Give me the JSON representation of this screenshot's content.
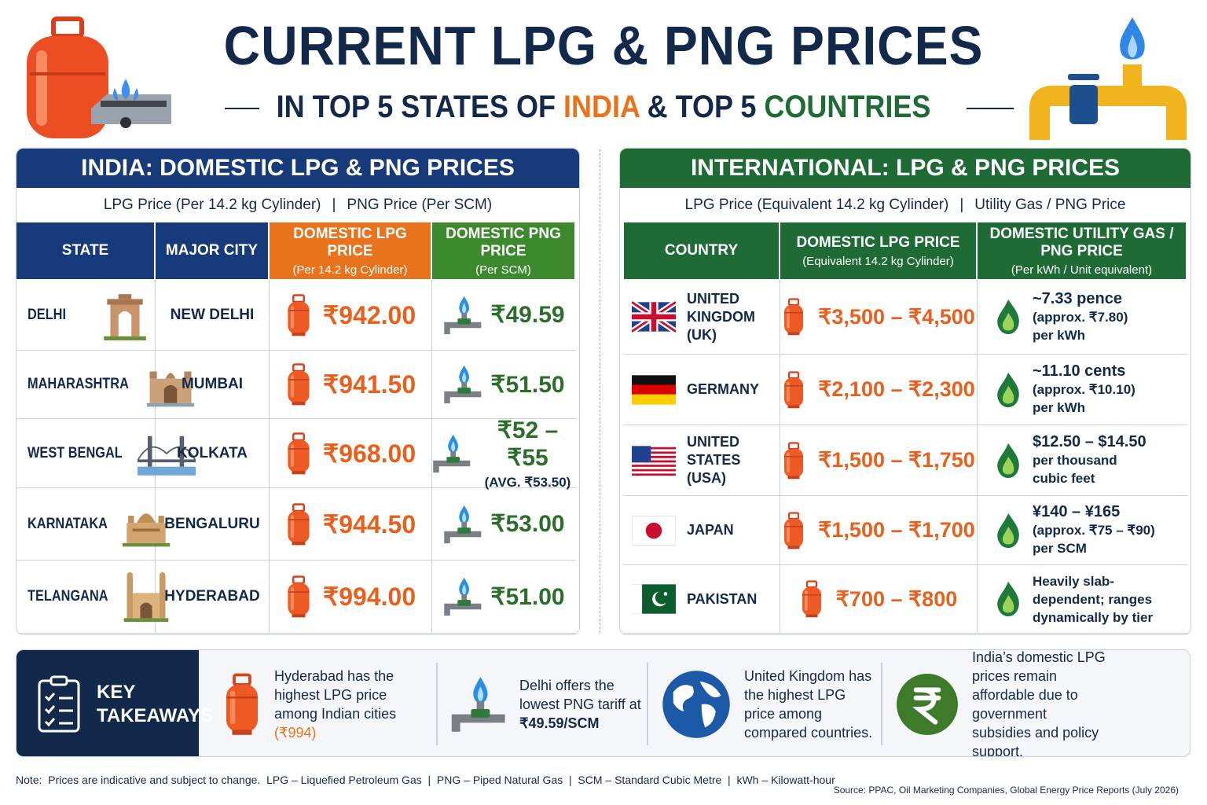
{
  "header": {
    "title": "CURRENT LPG & PNG PRICES",
    "subtitle": {
      "lead": "IN TOP 5 STATES OF",
      "india": "INDIA",
      "mid": "& TOP 5",
      "countries": "COUNTRIES"
    }
  },
  "india": {
    "title": "INDIA: DOMESTIC LPG & PNG PRICES",
    "subheading": [
      "LPG Price (Per 14.2 kg Cylinder)",
      "PNG Price (Per SCM)"
    ],
    "columns": {
      "state": "STATE",
      "city": "MAJOR CITY",
      "lpg": {
        "title": "DOMESTIC LPG PRICE",
        "note": "(Per 14.2 kg Cylinder)"
      },
      "png": {
        "title": "DOMESTIC PNG PRICE",
        "note": "(Per SCM)"
      }
    },
    "rows": [
      {
        "state": "DELHI",
        "city": "NEW DELHI",
        "lpg": "₹942.00",
        "png": "₹49.59"
      },
      {
        "state": "MAHARASHTRA",
        "city": "MUMBAI",
        "lpg": "₹941.50",
        "png": "₹51.50"
      },
      {
        "state": "WEST BENGAL",
        "city": "KOLKATA",
        "lpg": "₹968.00",
        "png": "₹52 – ₹55",
        "png_note": "(AVG. ₹53.50)"
      },
      {
        "state": "KARNATAKA",
        "city": "BENGALURU",
        "lpg": "₹944.50",
        "png": "₹53.00"
      },
      {
        "state": "TELANGANA",
        "city": "HYDERABAD",
        "lpg": "₹994.00",
        "png": "₹51.00"
      }
    ]
  },
  "international": {
    "title": "INTERNATIONAL: LPG & PNG PRICES",
    "subheading": [
      "LPG Price (Equivalent 14.2 kg Cylinder)",
      "Utility Gas / PNG Price"
    ],
    "columns": {
      "country": "COUNTRY",
      "lpg": {
        "title": "DOMESTIC LPG PRICE",
        "note": "(Equivalent 14.2 kg Cylinder)"
      },
      "gas": {
        "title": "DOMESTIC UTILITY GAS / PNG PRICE",
        "note": "(Per kWh / Unit equivalent)"
      }
    },
    "rows": [
      {
        "country": "UNITED KINGDOM (UK)",
        "lpg": "₹3,500 – ₹4,500",
        "gas": [
          "~7.33 pence",
          "(approx. ₹7.80)",
          "per kWh"
        ]
      },
      {
        "country": "GERMANY",
        "lpg": "₹2,100 – ₹2,300",
        "gas": [
          "~11.10 cents",
          "(approx. ₹10.10)",
          "per kWh"
        ]
      },
      {
        "country": "UNITED STATES (USA)",
        "lpg": "₹1,500 – ₹1,750",
        "gas": [
          "$12.50 – $14.50",
          "per thousand",
          "cubic feet"
        ]
      },
      {
        "country": "JAPAN",
        "lpg": "₹1,500 – ₹1,700",
        "gas": [
          "¥140 – ¥165",
          "(approx. ₹75 – ₹90)",
          "per SCM"
        ]
      },
      {
        "country": "PAKISTAN",
        "lpg": "₹700 – ₹800",
        "gas": [
          "Heavily slab-",
          "dependent; ranges",
          "dynamically by tier"
        ]
      }
    ]
  },
  "takeaways": {
    "title": "KEY TAKEAWAYS",
    "items": [
      {
        "text": "Hyderabad has the highest LPG price among Indian cities",
        "highlight": "(₹994)"
      },
      {
        "text": "Delhi offers the lowest PNG tariff at",
        "highlight": "₹49.59/SCM"
      },
      {
        "text": "United Kingdom has the highest LPG price among compared countries."
      },
      {
        "text": "India’s domestic LPG prices remain affordable due to government subsidies and policy support."
      }
    ]
  },
  "footer": {
    "note": "Note:  Prices are indicative and subject to change.  LPG – Liquefied Petroleum Gas  |  PNG – Piped Natural Gas  |  SCM – Standard Cubic Metre  |  kWh – Kilowatt-hour",
    "source": "Source: PPAC, Oil Marketing Companies, Global Energy Price Reports (July 2026)"
  }
}
